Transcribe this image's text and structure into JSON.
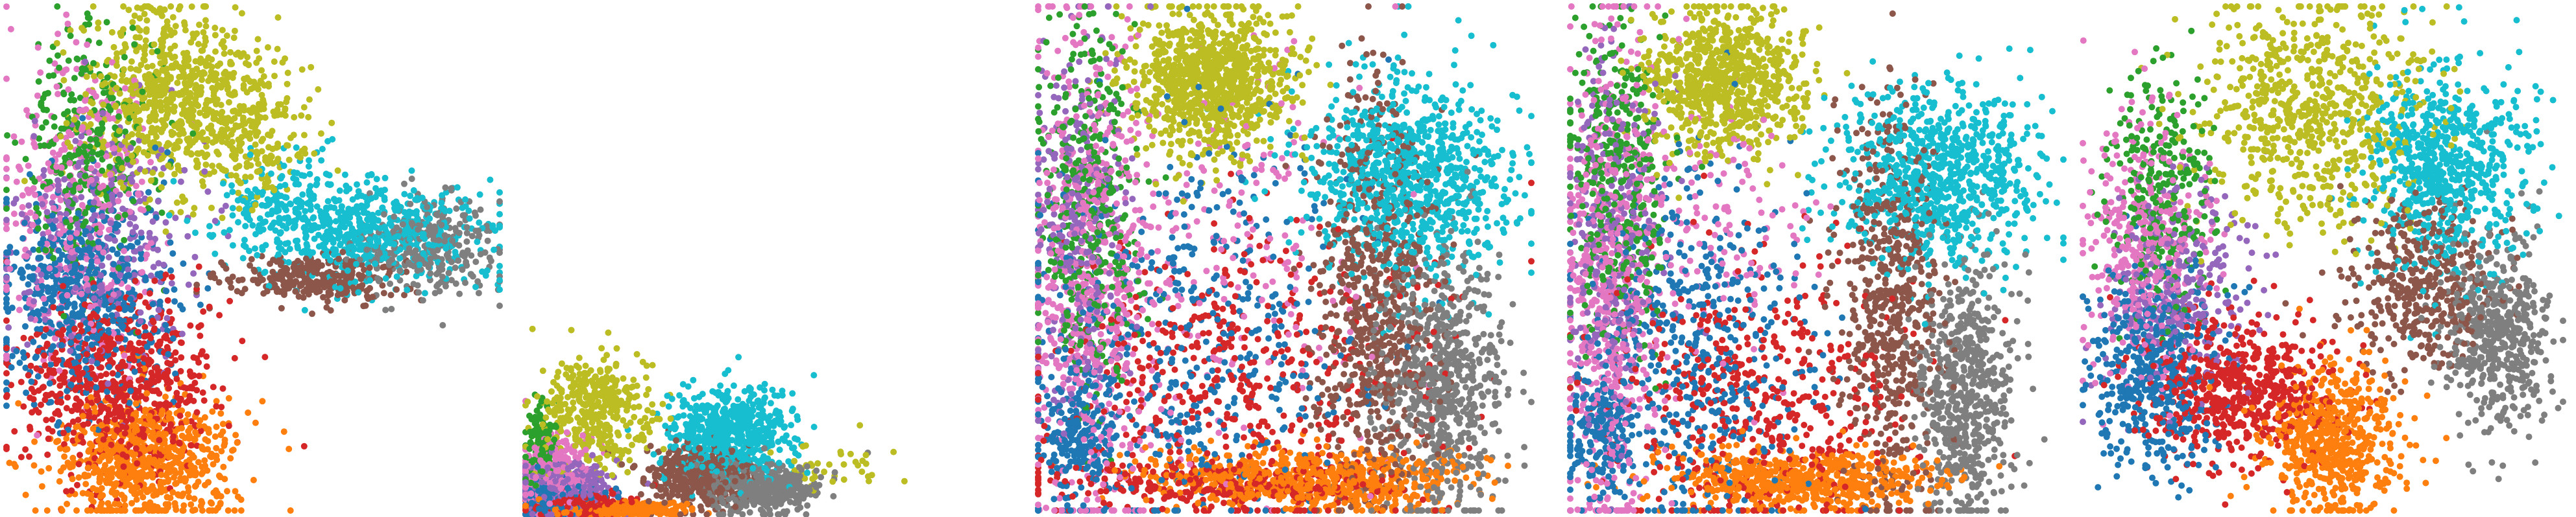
{
  "chart_data": [
    {
      "type": "scatter",
      "title": "",
      "xlabel": "",
      "ylabel": "",
      "axes_visible": false,
      "grid": false,
      "legend": "none",
      "xlim": [
        0,
        1
      ],
      "ylim": [
        0,
        1
      ],
      "series": [
        {
          "color": "#bcbd22",
          "clusters": [
            [
              0.33,
              0.82,
              0.09,
              0.09,
              700
            ],
            [
              0.5,
              0.76,
              0.06,
              0.07,
              200
            ]
          ]
        },
        {
          "color": "#17becf",
          "clusters": [
            [
              0.72,
              0.55,
              0.13,
              0.05,
              600
            ],
            [
              0.58,
              0.62,
              0.06,
              0.05,
              120
            ]
          ]
        },
        {
          "color": "#8c564b",
          "clusters": [
            [
              0.63,
              0.46,
              0.09,
              0.025,
              300
            ]
          ]
        },
        {
          "color": "#7f7f7f",
          "clusters": [
            [
              0.86,
              0.52,
              0.07,
              0.05,
              300
            ]
          ]
        },
        {
          "color": "#2ca02c",
          "clusters": [
            [
              0.17,
              0.72,
              0.07,
              0.12,
              300
            ]
          ]
        },
        {
          "color": "#e377c2",
          "clusters": [
            [
              0.14,
              0.6,
              0.08,
              0.16,
              400
            ]
          ]
        },
        {
          "color": "#9467bd",
          "clusters": [
            [
              0.2,
              0.55,
              0.1,
              0.12,
              300
            ]
          ]
        },
        {
          "color": "#1f77b4",
          "clusters": [
            [
              0.16,
              0.42,
              0.09,
              0.1,
              600
            ]
          ]
        },
        {
          "color": "#d62728",
          "clusters": [
            [
              0.22,
              0.25,
              0.1,
              0.09,
              700
            ]
          ]
        },
        {
          "color": "#ff7f0e",
          "clusters": [
            [
              0.28,
              0.1,
              0.09,
              0.06,
              700
            ]
          ]
        }
      ]
    },
    {
      "type": "scatter",
      "title": "",
      "xlabel": "",
      "ylabel": "",
      "axes_visible": false,
      "grid": false,
      "legend": "none",
      "xlim": [
        0,
        1
      ],
      "ylim": [
        0,
        1
      ],
      "series": [
        {
          "color": "#bcbd22",
          "clusters": [
            [
              0.18,
              0.32,
              0.07,
              0.09,
              400
            ],
            [
              0.78,
              0.15,
              0.1,
              0.04,
              40
            ]
          ]
        },
        {
          "color": "#17becf",
          "clusters": [
            [
              0.53,
              0.25,
              0.08,
              0.07,
              600
            ]
          ]
        },
        {
          "color": "#8c564b",
          "clusters": [
            [
              0.45,
              0.12,
              0.07,
              0.05,
              400
            ]
          ]
        },
        {
          "color": "#7f7f7f",
          "clusters": [
            [
              0.62,
              0.08,
              0.07,
              0.04,
              400
            ]
          ]
        },
        {
          "color": "#2ca02c",
          "clusters": [
            [
              0.04,
              0.22,
              0.02,
              0.06,
              150
            ]
          ]
        },
        {
          "color": "#e377c2",
          "clusters": [
            [
              0.08,
              0.13,
              0.05,
              0.06,
              300
            ]
          ]
        },
        {
          "color": "#9467bd",
          "clusters": [
            [
              0.1,
              0.08,
              0.06,
              0.04,
              300
            ]
          ]
        },
        {
          "color": "#1f77b4",
          "clusters": [
            [
              0.08,
              0.05,
              0.05,
              0.03,
              300
            ]
          ]
        },
        {
          "color": "#d62728",
          "clusters": [
            [
              0.14,
              0.03,
              0.06,
              0.02,
              300
            ]
          ]
        },
        {
          "color": "#ff7f0e",
          "clusters": [
            [
              0.24,
              0.015,
              0.08,
              0.01,
              500
            ]
          ]
        }
      ]
    },
    {
      "type": "scatter",
      "title": "",
      "xlabel": "",
      "ylabel": "",
      "axes_visible": false,
      "grid": false,
      "legend": "none",
      "xlim": [
        0,
        1
      ],
      "ylim": [
        0,
        1
      ],
      "series": [
        {
          "color": "#bcbd22",
          "clusters": [
            [
              0.35,
              0.85,
              0.08,
              0.07,
              900
            ]
          ]
        },
        {
          "color": "#17becf",
          "clusters": [
            [
              0.75,
              0.66,
              0.1,
              0.1,
              900
            ]
          ]
        },
        {
          "color": "#8c564b",
          "clusters": [
            [
              0.68,
              0.42,
              0.06,
              0.2,
              700
            ]
          ]
        },
        {
          "color": "#7f7f7f",
          "clusters": [
            [
              0.82,
              0.25,
              0.06,
              0.14,
              700
            ]
          ]
        },
        {
          "color": "#2ca02c",
          "clusters": [
            [
              0.1,
              0.6,
              0.05,
              0.18,
              400
            ]
          ]
        },
        {
          "color": "#e377c2",
          "clusters": [
            [
              0.1,
              0.45,
              0.06,
              0.25,
              600
            ],
            [
              0.35,
              0.5,
              0.18,
              0.22,
              250
            ]
          ]
        },
        {
          "color": "#9467bd",
          "clusters": [
            [
              0.08,
              0.55,
              0.05,
              0.2,
              300
            ]
          ]
        },
        {
          "color": "#1f77b4",
          "clusters": [
            [
              0.3,
              0.35,
              0.18,
              0.22,
              500
            ],
            [
              0.08,
              0.15,
              0.04,
              0.06,
              200
            ]
          ]
        },
        {
          "color": "#d62728",
          "clusters": [
            [
              0.4,
              0.25,
              0.2,
              0.16,
              500
            ],
            [
              0.35,
              0.05,
              0.18,
              0.02,
              250
            ]
          ]
        },
        {
          "color": "#ff7f0e",
          "clusters": [
            [
              0.55,
              0.06,
              0.16,
              0.03,
              700
            ]
          ]
        }
      ]
    },
    {
      "type": "scatter",
      "title": "",
      "xlabel": "",
      "ylabel": "",
      "axes_visible": false,
      "grid": false,
      "legend": "none",
      "xlim": [
        0,
        1
      ],
      "ylim": [
        0,
        1
      ],
      "series": [
        {
          "color": "#bcbd22",
          "clusters": [
            [
              0.32,
              0.85,
              0.08,
              0.07,
              800
            ]
          ]
        },
        {
          "color": "#17becf",
          "clusters": [
            [
              0.75,
              0.66,
              0.1,
              0.09,
              800
            ]
          ]
        },
        {
          "color": "#8c564b",
          "clusters": [
            [
              0.65,
              0.4,
              0.05,
              0.2,
              600
            ]
          ]
        },
        {
          "color": "#7f7f7f",
          "clusters": [
            [
              0.8,
              0.22,
              0.05,
              0.14,
              600
            ]
          ]
        },
        {
          "color": "#2ca02c",
          "clusters": [
            [
              0.1,
              0.65,
              0.05,
              0.16,
              400
            ]
          ]
        },
        {
          "color": "#e377c2",
          "clusters": [
            [
              0.08,
              0.45,
              0.05,
              0.25,
              600
            ],
            [
              0.28,
              0.55,
              0.1,
              0.15,
              150
            ]
          ]
        },
        {
          "color": "#9467bd",
          "clusters": [
            [
              0.08,
              0.55,
              0.05,
              0.18,
              300
            ]
          ]
        },
        {
          "color": "#1f77b4",
          "clusters": [
            [
              0.25,
              0.32,
              0.12,
              0.18,
              500
            ],
            [
              0.06,
              0.15,
              0.04,
              0.06,
              200
            ]
          ]
        },
        {
          "color": "#d62728",
          "clusters": [
            [
              0.38,
              0.22,
              0.15,
              0.14,
              500
            ]
          ]
        },
        {
          "color": "#ff7f0e",
          "clusters": [
            [
              0.45,
              0.06,
              0.14,
              0.03,
              600
            ]
          ]
        }
      ]
    },
    {
      "type": "scatter",
      "title": "",
      "xlabel": "",
      "ylabel": "",
      "axes_visible": false,
      "grid": false,
      "legend": "none",
      "xlim": [
        0,
        1
      ],
      "ylim": [
        0,
        1
      ],
      "series": [
        {
          "color": "#bcbd22",
          "clusters": [
            [
              0.47,
              0.8,
              0.12,
              0.12,
              700
            ]
          ]
        },
        {
          "color": "#17becf",
          "clusters": [
            [
              0.75,
              0.68,
              0.08,
              0.1,
              700
            ]
          ]
        },
        {
          "color": "#8c564b",
          "clusters": [
            [
              0.7,
              0.45,
              0.08,
              0.08,
              400
            ]
          ]
        },
        {
          "color": "#7f7f7f",
          "clusters": [
            [
              0.86,
              0.35,
              0.06,
              0.1,
              500
            ]
          ]
        },
        {
          "color": "#2ca02c",
          "clusters": [
            [
              0.16,
              0.62,
              0.05,
              0.12,
              300
            ]
          ]
        },
        {
          "color": "#e377c2",
          "clusters": [
            [
              0.12,
              0.52,
              0.06,
              0.14,
              400
            ]
          ]
        },
        {
          "color": "#9467bd",
          "clusters": [
            [
              0.2,
              0.45,
              0.08,
              0.1,
              300
            ]
          ]
        },
        {
          "color": "#1f77b4",
          "clusters": [
            [
              0.15,
              0.28,
              0.07,
              0.1,
              500
            ]
          ]
        },
        {
          "color": "#d62728",
          "clusters": [
            [
              0.32,
              0.24,
              0.1,
              0.07,
              600
            ]
          ]
        },
        {
          "color": "#ff7f0e",
          "clusters": [
            [
              0.52,
              0.14,
              0.07,
              0.07,
              600
            ]
          ]
        }
      ]
    }
  ]
}
